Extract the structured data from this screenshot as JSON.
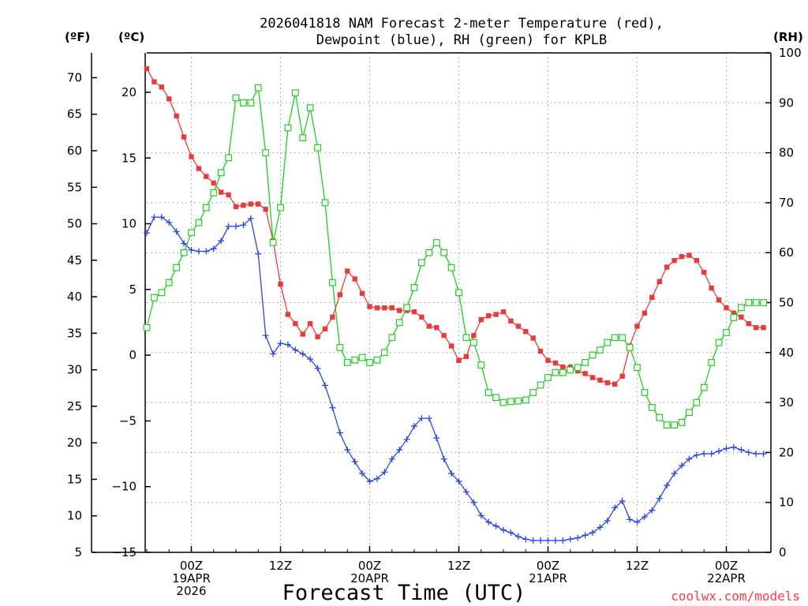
{
  "chart_data": {
    "type": "line",
    "title_lines": [
      "2026041818 NAM Forecast 2-meter Temperature (red),",
      "Dewpoint (blue), RH (green) for KPLB"
    ],
    "xlabel": "Forecast Time (UTC)",
    "unit_left_f": "(ºF)",
    "unit_left_c": "(ºC)",
    "unit_right": "(RH)",
    "credit": "coolwx.com/models",
    "credit_color": "#ff3c3c",
    "x_range_hours": [
      0,
      84
    ],
    "c_range": [
      -15,
      23
    ],
    "rh_range": [
      0,
      100
    ],
    "f_ticks": [
      5,
      10,
      15,
      20,
      25,
      30,
      35,
      40,
      45,
      50,
      55,
      60,
      65,
      70
    ],
    "c_ticks": [
      -15,
      -10,
      -5,
      0,
      5,
      10,
      15,
      20
    ],
    "rh_ticks": [
      0,
      10,
      20,
      30,
      40,
      50,
      60,
      70,
      80,
      90,
      100
    ],
    "x_ticks": [
      {
        "hour": 6,
        "lines": [
          "00Z",
          "19APR",
          "2026"
        ]
      },
      {
        "hour": 18,
        "lines": [
          "12Z"
        ]
      },
      {
        "hour": 30,
        "lines": [
          "00Z",
          "20APR"
        ]
      },
      {
        "hour": 42,
        "lines": [
          "12Z"
        ]
      },
      {
        "hour": 54,
        "lines": [
          "00Z",
          "21APR"
        ]
      },
      {
        "hour": 66,
        "lines": [
          "12Z"
        ]
      },
      {
        "hour": 78,
        "lines": [
          "00Z",
          "22APR"
        ]
      }
    ],
    "series": [
      {
        "name": "Temperature",
        "unit": "C",
        "color": "#e83c3c",
        "marker": "filled-square",
        "values": [
          21.8,
          20.8,
          20.4,
          19.5,
          18.2,
          16.6,
          15.1,
          14.2,
          13.6,
          13.1,
          12.4,
          12.2,
          11.3,
          11.4,
          11.5,
          11.5,
          11.1,
          8.7,
          5.4,
          3.1,
          2.4,
          1.6,
          2.4,
          1.4,
          2.0,
          2.9,
          4.6,
          6.4,
          5.8,
          4.7,
          3.7,
          3.6,
          3.6,
          3.6,
          3.4,
          3.4,
          3.3,
          2.9,
          2.2,
          2.1,
          1.5,
          0.7,
          -0.4,
          -0.1,
          1.5,
          2.7,
          3.0,
          3.1,
          3.3,
          2.6,
          2.2,
          1.8,
          1.3,
          0.3,
          -0.4,
          -0.6,
          -0.9,
          -0.9,
          -1.2,
          -1.4,
          -1.7,
          -1.9,
          -2.1,
          -2.2,
          -1.6,
          0.7,
          2.2,
          3.2,
          4.4,
          5.6,
          6.7,
          7.2,
          7.5,
          7.6,
          7.2,
          6.3,
          5.1,
          4.2,
          3.6,
          3.2,
          2.9,
          2.4,
          2.1,
          2.1
        ]
      },
      {
        "name": "Dewpoint",
        "unit": "C",
        "color": "#2a48e0",
        "marker": "plus",
        "values": [
          9.3,
          10.5,
          10.5,
          10.1,
          9.4,
          8.5,
          8.0,
          7.9,
          7.9,
          8.1,
          8.7,
          9.8,
          9.8,
          9.9,
          10.4,
          7.7,
          1.5,
          0.1,
          0.9,
          0.8,
          0.4,
          0.1,
          -0.3,
          -1.0,
          -2.3,
          -4.0,
          -5.9,
          -7.2,
          -8.1,
          -9.0,
          -9.6,
          -9.4,
          -8.9,
          -7.9,
          -7.2,
          -6.4,
          -5.4,
          -4.8,
          -4.8,
          -6.3,
          -7.9,
          -9.0,
          -9.6,
          -10.4,
          -11.2,
          -12.2,
          -12.7,
          -13.0,
          -13.3,
          -13.5,
          -13.8,
          -14.0,
          -14.1,
          -14.1,
          -14.1,
          -14.1,
          -14.1,
          -14.0,
          -13.9,
          -13.7,
          -13.5,
          -13.1,
          -12.6,
          -11.6,
          -11.1,
          -12.5,
          -12.7,
          -12.3,
          -11.8,
          -10.9,
          -9.9,
          -9.0,
          -8.4,
          -7.9,
          -7.6,
          -7.5,
          -7.5,
          -7.3,
          -7.1,
          -7.0,
          -7.2,
          -7.4,
          -7.5,
          -7.5
        ]
      },
      {
        "name": "RH",
        "unit": "%",
        "color": "#22cc22",
        "marker": "open-square",
        "values": [
          45,
          51,
          52,
          54,
          57,
          60,
          64,
          66,
          69,
          72,
          76,
          79,
          91,
          90,
          90,
          93,
          80,
          62,
          69,
          85,
          92,
          83,
          89,
          81,
          70,
          54,
          41,
          38,
          38.5,
          39,
          38,
          38.5,
          40,
          43,
          46,
          49,
          53,
          58,
          60,
          62,
          60,
          57,
          52,
          43,
          42,
          37.5,
          32,
          31,
          30,
          30.2,
          30.3,
          30.5,
          32,
          33.5,
          35,
          36,
          36,
          36.5,
          37,
          38,
          39.5,
          40.5,
          42,
          43,
          43,
          41,
          37,
          32,
          29,
          27,
          25.5,
          25.5,
          26,
          28,
          30,
          33,
          38,
          42,
          44,
          47,
          49,
          50,
          50,
          50
        ]
      }
    ]
  }
}
